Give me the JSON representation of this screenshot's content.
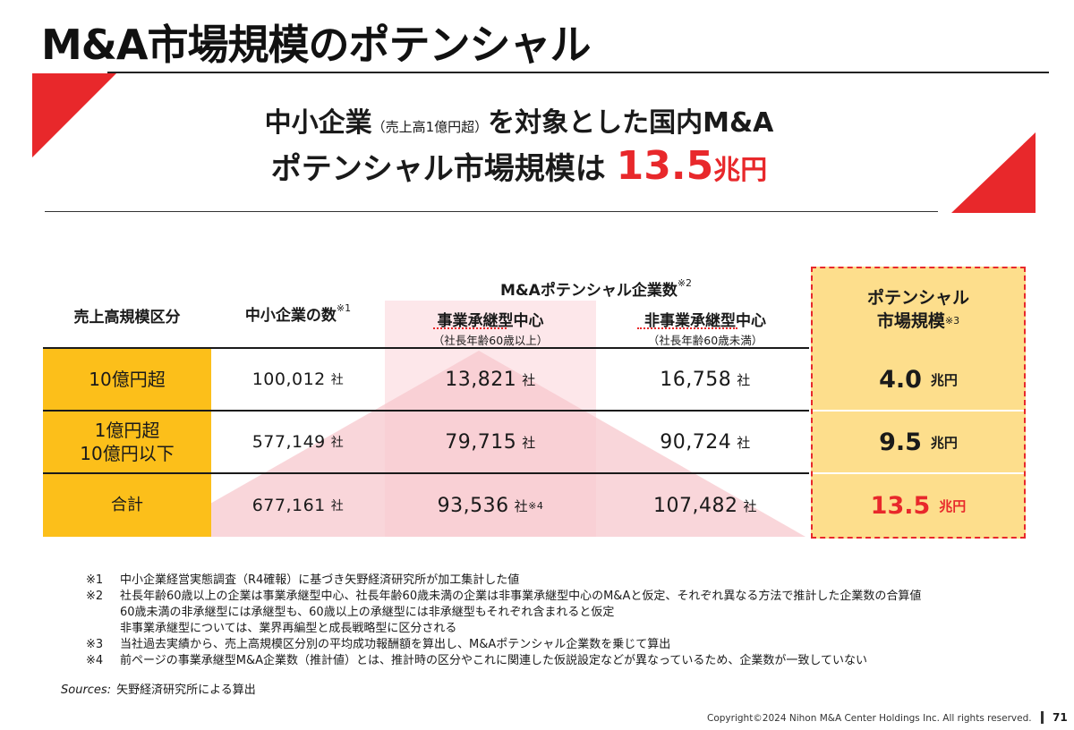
{
  "title": "M&A市場規模のポテンシャル",
  "lead": {
    "line1_main": "中小企業",
    "line1_small": "（売上高1億円超）",
    "line1_tail": "を対象とした国内M&A",
    "line2_main": "ポテンシャル市場規模は ",
    "line2_value": "13.5",
    "line2_unit": "兆円"
  },
  "table": {
    "col_category": "売上高規模区分",
    "col_sme": "中小企業の数",
    "col_sme_note": "※1",
    "col_ma_group": "M&Aポテンシャル企業数",
    "col_ma_group_note": "※2",
    "col_succession": "事業承継型中心",
    "col_succession_sub": "（社長年齢60歳以上）",
    "col_nonsuccession": "非事業承継型中心",
    "col_nonsuccession_sub": "（社長年齢60歳未満）",
    "col_potential_1": "ポテンシャル",
    "col_potential_2": "市場規模",
    "col_potential_note": "※3",
    "company_unit": "社",
    "money_unit": "兆円",
    "rows": [
      {
        "category_1": "10億円超",
        "category_2": "",
        "sme": "100,012",
        "succession": "13,821",
        "succession_note": "",
        "nonsuccession": "16,758",
        "potential": "4.0"
      },
      {
        "category_1": "1億円超",
        "category_2": "10億円以下",
        "sme": "577,149",
        "succession": "79,715",
        "succession_note": "",
        "nonsuccession": "90,724",
        "potential": "9.5"
      },
      {
        "category_1": "合計",
        "category_2": "",
        "sme": "677,161",
        "succession": "93,536",
        "succession_note": "※4",
        "nonsuccession": "107,482",
        "potential": "13.5"
      }
    ]
  },
  "notes": [
    {
      "key": "※1",
      "text": "中小企業経営実態調査（R4確報）に基づき矢野経済研究所が加工集計した値"
    },
    {
      "key": "※2",
      "text": "社長年齢60歳以上の企業は事業承継型中心、社長年齢60歳未満の企業は非事業承継型中心のM&Aと仮定、それぞれ異なる方法で推計した企業数の合算値"
    },
    {
      "key": "",
      "text": "60歳未満の非承継型には承継型も、60歳以上の承継型には非承継型もそれぞれ含まれると仮定"
    },
    {
      "key": "",
      "text": "非事業承継型については、業界再編型と成長戦略型に区分される"
    },
    {
      "key": "※3",
      "text": "当社過去実績から、売上高規模区分別の平均成功報酬額を算出し、M&Aポテンシャル企業数を乗じて算出"
    },
    {
      "key": "※4",
      "text": "前ページの事業承継型M&A企業数（推計値）とは、推計時の区分やこれに関連した仮説設定などが異なっているため、企業数が一致していない"
    }
  ],
  "sources_label": "Sources:",
  "sources_text": "矢野経済研究所による算出",
  "footer": "Copyright©2024 Nihon M&A Center Holdings Inc. All rights reserved.",
  "page_number": "71",
  "colors": {
    "accent_red": "#e8282b",
    "category_yellow": "#fcbf1a",
    "potential_yellow": "#fdde8c",
    "pink_band": "#fce8ea"
  }
}
